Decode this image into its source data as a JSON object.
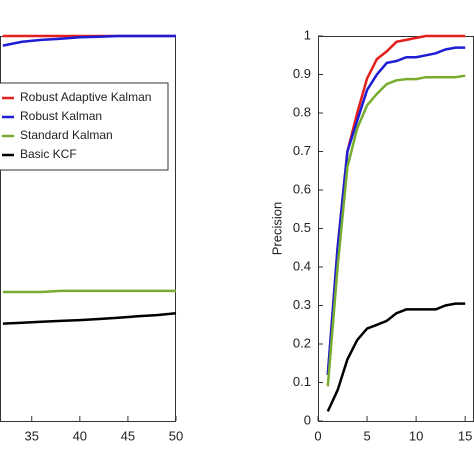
{
  "chart_data": [
    {
      "type": "line",
      "x": [
        32,
        34,
        36,
        38,
        40,
        42,
        44,
        46,
        48,
        50
      ],
      "xlim": [
        31.7,
        50
      ],
      "xticks": [
        35,
        40,
        45,
        50
      ],
      "ylim": [
        0,
        1
      ],
      "legend": "west",
      "series": [
        {
          "name": "Robust Adaptive Kalman",
          "color": "#e3201c",
          "values": [
            1,
            1,
            1,
            1,
            1,
            1,
            1,
            1,
            1,
            1
          ]
        },
        {
          "name": "Robust Kalman",
          "color": "#1d1dd6",
          "values": [
            0.975,
            0.985,
            0.99,
            0.993,
            0.997,
            0.998,
            1,
            1,
            1,
            1
          ]
        },
        {
          "name": "Standard Kalman",
          "color": "#77ac30",
          "values": [
            0.335,
            0.335,
            0.335,
            0.338,
            0.338,
            0.338,
            0.338,
            0.338,
            0.338,
            0.338
          ]
        },
        {
          "name": "Basic KCF",
          "color": "#000000",
          "values": [
            0.253,
            0.255,
            0.258,
            0.26,
            0.262,
            0.265,
            0.268,
            0.272,
            0.275,
            0.28
          ]
        }
      ]
    },
    {
      "type": "line",
      "ylabel": "Precision",
      "x": [
        1,
        2,
        3,
        4,
        5,
        6,
        7,
        8,
        9,
        10,
        11,
        12,
        13,
        14,
        15
      ],
      "xlim": [
        0,
        15.9
      ],
      "xticks": [
        0,
        5,
        10,
        15
      ],
      "ylim": [
        0,
        1
      ],
      "yticks": [
        0,
        0.1,
        0.2,
        0.3,
        0.4,
        0.5,
        0.6,
        0.7,
        0.8,
        0.9,
        1
      ],
      "series": [
        {
          "color": "#e3201c",
          "values": [
            0.12,
            0.45,
            0.7,
            0.8,
            0.89,
            0.94,
            0.96,
            0.985,
            0.99,
            0.995,
            1,
            1,
            1,
            1,
            1
          ]
        },
        {
          "color": "#1d1dd6",
          "values": [
            0.12,
            0.45,
            0.7,
            0.78,
            0.86,
            0.9,
            0.93,
            0.935,
            0.945,
            0.945,
            0.95,
            0.955,
            0.965,
            0.97,
            0.97
          ]
        },
        {
          "color": "#77ac30",
          "values": [
            0.09,
            0.4,
            0.66,
            0.76,
            0.82,
            0.85,
            0.875,
            0.885,
            0.888,
            0.888,
            0.893,
            0.893,
            0.893,
            0.893,
            0.897
          ]
        },
        {
          "color": "#000000",
          "values": [
            0.025,
            0.08,
            0.16,
            0.21,
            0.24,
            0.25,
            0.26,
            0.28,
            0.29,
            0.29,
            0.29,
            0.29,
            0.3,
            0.305,
            0.305
          ]
        }
      ]
    }
  ]
}
